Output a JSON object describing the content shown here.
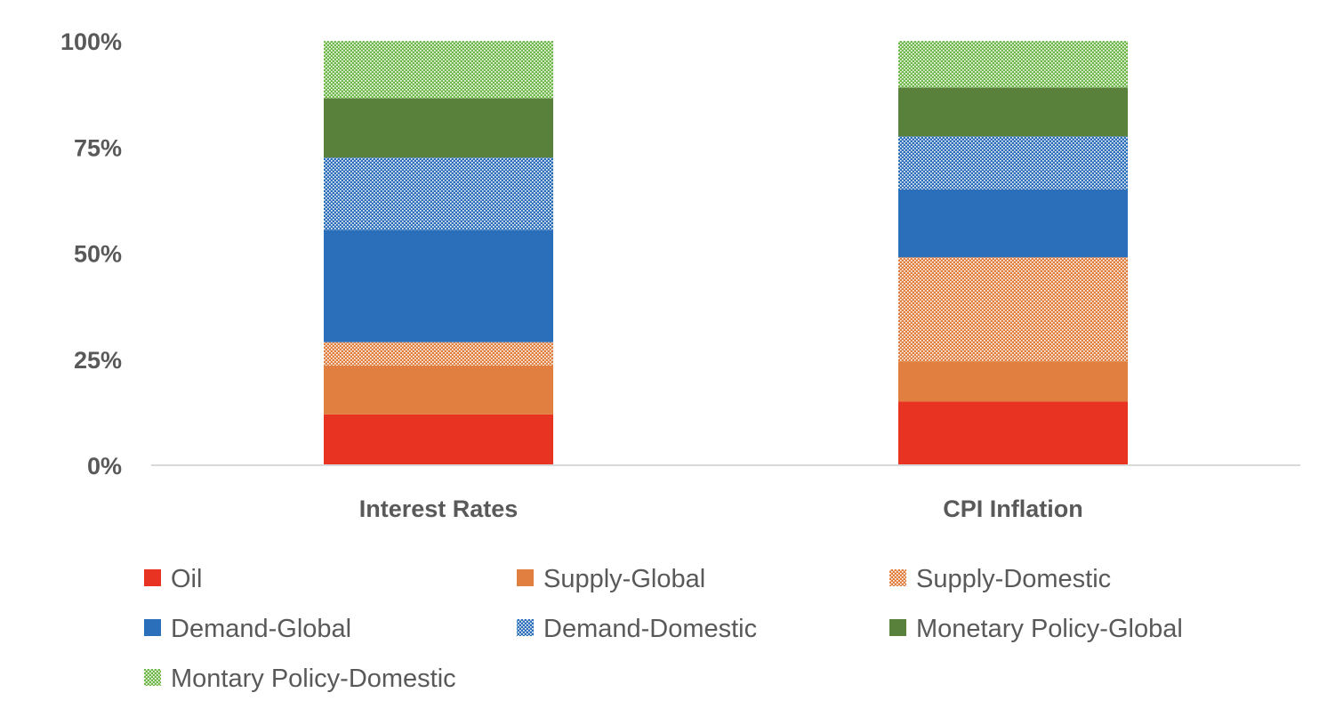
{
  "chart_data": {
    "type": "bar",
    "stacked": true,
    "title": "",
    "xlabel": "",
    "ylabel": "",
    "ylim": [
      0,
      1
    ],
    "yticks": [
      0,
      0.25,
      0.5,
      0.75,
      1.0
    ],
    "ytick_labels": [
      "0%",
      "25%",
      "50%",
      "75%",
      "100%"
    ],
    "grid": false,
    "legend_position": "bottom",
    "categories": [
      "Interest Rates",
      "CPI Inflation"
    ],
    "series": [
      {
        "name": "Oil",
        "color": "#e83323",
        "pattern": "solid",
        "values": [
          0.12,
          0.15
        ]
      },
      {
        "name": "Supply-Global",
        "color": "#e07f3f",
        "pattern": "solid",
        "values": [
          0.115,
          0.095
        ]
      },
      {
        "name": "Supply-Domestic",
        "color": "#e07f3f",
        "pattern": "dotted",
        "values": [
          0.055,
          0.245
        ]
      },
      {
        "name": "Demand-Global",
        "color": "#2b6fba",
        "pattern": "solid",
        "values": [
          0.265,
          0.16
        ]
      },
      {
        "name": "Demand-Domestic",
        "color": "#2b6fba",
        "pattern": "dotted",
        "values": [
          0.17,
          0.125
        ]
      },
      {
        "name": "Monetary Policy-Global",
        "color": "#5a813b",
        "pattern": "solid",
        "values": [
          0.14,
          0.115
        ]
      },
      {
        "name": "Montary Policy-Domestic",
        "color": "#6fb84a",
        "pattern": "dotted",
        "values": [
          0.135,
          0.11
        ]
      }
    ]
  }
}
